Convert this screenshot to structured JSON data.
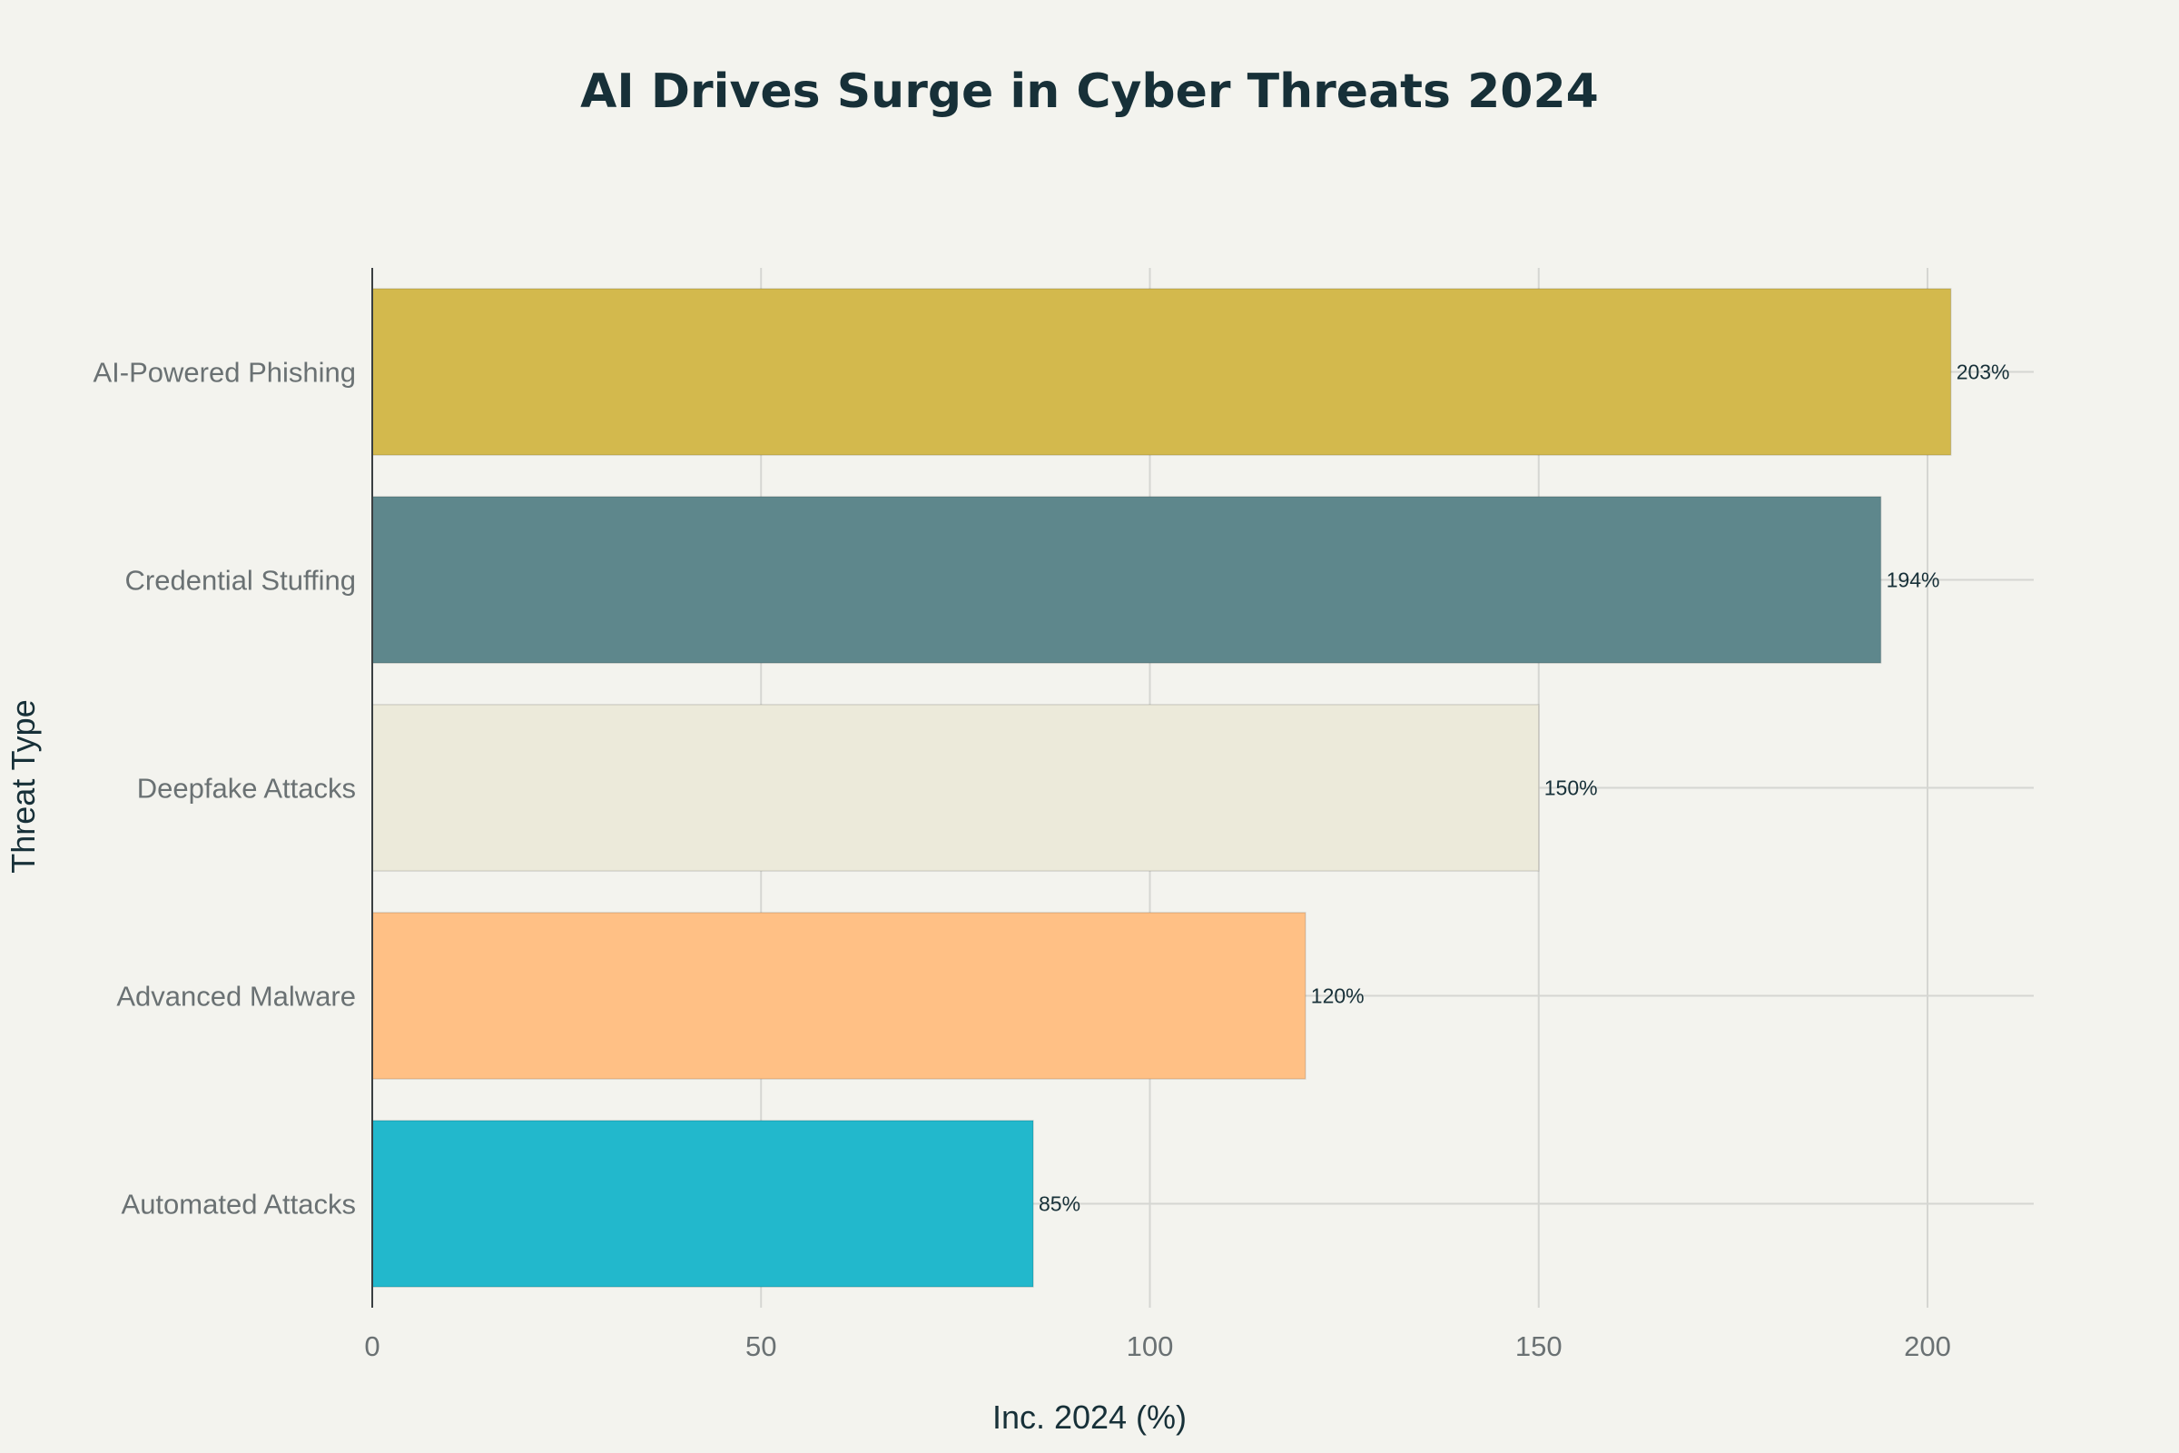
{
  "chart_data": {
    "type": "bar",
    "orientation": "horizontal",
    "title": "AI Drives Surge in Cyber Threats 2024",
    "xlabel": "Inc. 2024 (%)",
    "ylabel": "Threat Type",
    "xlim": [
      0,
      210
    ],
    "xticks": [
      0,
      50,
      100,
      150,
      200
    ],
    "grid": true,
    "categories": [
      "AI-Powered Phishing",
      "Credential Stuffing",
      "Deepfake Attacks",
      "Advanced Malware",
      "Automated Attacks"
    ],
    "values": [
      203,
      194,
      150,
      120,
      85
    ],
    "data_labels": [
      "203%",
      "194%",
      "150%",
      "120%",
      "85%"
    ],
    "colors": [
      "#d3b94d",
      "#5e878c",
      "#eceada",
      "#ffc085",
      "#22b8cc"
    ]
  }
}
